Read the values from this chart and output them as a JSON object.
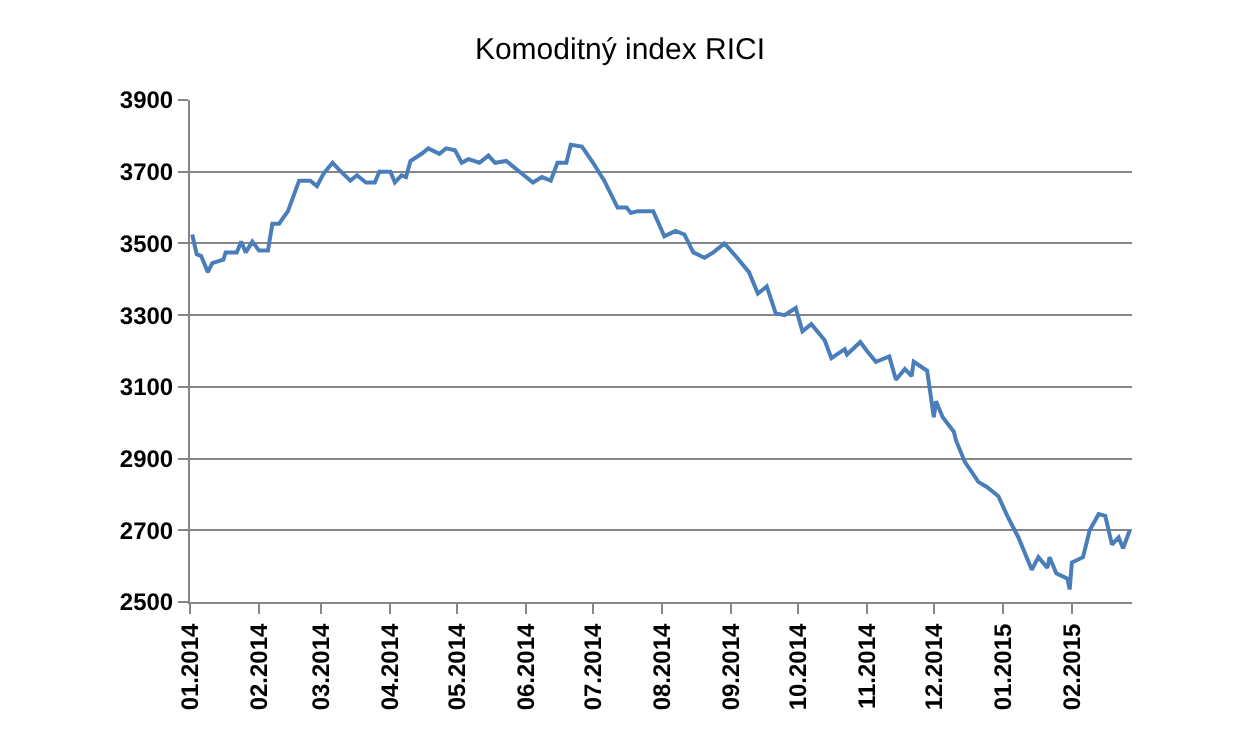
{
  "chart_data": {
    "type": "line",
    "title": "Komoditný index RICI",
    "x": [
      "2014-01-02",
      "2014-01-04",
      "2014-01-06",
      "2014-01-09",
      "2014-01-11",
      "2014-01-16",
      "2014-01-17",
      "2014-01-22",
      "2014-01-24",
      "2014-01-26",
      "2014-01-29",
      "2014-02-01",
      "2014-02-05",
      "2014-02-07",
      "2014-02-10",
      "2014-02-14",
      "2014-02-19",
      "2014-02-24",
      "2014-02-27",
      "2014-03-02",
      "2014-03-06",
      "2014-03-09",
      "2014-03-14",
      "2014-03-17",
      "2014-03-21",
      "2014-03-25",
      "2014-03-27",
      "2014-04-01",
      "2014-04-03",
      "2014-04-06",
      "2014-04-08",
      "2014-04-10",
      "2014-04-15",
      "2014-04-18",
      "2014-04-23",
      "2014-04-26",
      "2014-04-30",
      "2014-05-03",
      "2014-05-06",
      "2014-05-11",
      "2014-05-15",
      "2014-05-18",
      "2014-05-23",
      "2014-05-29",
      "2014-06-04",
      "2014-06-08",
      "2014-06-12",
      "2014-06-15",
      "2014-06-19",
      "2014-06-21",
      "2014-06-26",
      "2014-07-01",
      "2014-07-06",
      "2014-07-12",
      "2014-07-16",
      "2014-07-18",
      "2014-07-21",
      "2014-07-28",
      "2014-08-02",
      "2014-08-07",
      "2014-08-11",
      "2014-08-15",
      "2014-08-20",
      "2014-08-24",
      "2014-08-29",
      "2014-09-03",
      "2014-09-09",
      "2014-09-13",
      "2014-09-17",
      "2014-09-21",
      "2014-09-25",
      "2014-09-30",
      "2014-10-03",
      "2014-10-07",
      "2014-10-13",
      "2014-10-16",
      "2014-10-22",
      "2014-10-23",
      "2014-10-29",
      "2014-11-01",
      "2014-11-05",
      "2014-11-11",
      "2014-11-14",
      "2014-11-18",
      "2014-11-21",
      "2014-11-22",
      "2014-11-28",
      "2014-12-01",
      "2014-12-02",
      "2014-12-05",
      "2014-12-10",
      "2014-12-11",
      "2014-12-15",
      "2014-12-21",
      "2014-12-25",
      "2014-12-30",
      "2015-01-03",
      "2015-01-08",
      "2015-01-14",
      "2015-01-17",
      "2015-01-21",
      "2015-01-22",
      "2015-01-25",
      "2015-01-30",
      "2015-01-31",
      "2015-02-01",
      "2015-02-06",
      "2015-02-09",
      "2015-02-13",
      "2015-02-16",
      "2015-02-19",
      "2015-02-22",
      "2015-02-24",
      "2015-02-27"
    ],
    "series": [
      {
        "color": "#4a7ebb",
        "values": [
          3525,
          3470,
          3465,
          3420,
          3445,
          3455,
          3475,
          3475,
          3505,
          3475,
          3505,
          3480,
          3480,
          3555,
          3555,
          3590,
          3675,
          3675,
          3660,
          3695,
          3725,
          3705,
          3675,
          3690,
          3670,
          3670,
          3700,
          3700,
          3670,
          3690,
          3685,
          3730,
          3750,
          3765,
          3750,
          3765,
          3760,
          3725,
          3735,
          3725,
          3745,
          3725,
          3730,
          3700,
          3670,
          3685,
          3675,
          3725,
          3725,
          3775,
          3770,
          3725,
          3675,
          3600,
          3600,
          3585,
          3590,
          3590,
          3520,
          3535,
          3525,
          3475,
          3460,
          3475,
          3500,
          3465,
          3420,
          3360,
          3380,
          3305,
          3300,
          3320,
          3255,
          3275,
          3230,
          3180,
          3205,
          3190,
          3225,
          3200,
          3170,
          3185,
          3120,
          3150,
          3130,
          3170,
          3145,
          3015,
          3060,
          3015,
          2975,
          2950,
          2890,
          2835,
          2820,
          2795,
          2740,
          2680,
          2590,
          2625,
          2595,
          2625,
          2580,
          2565,
          2535,
          2610,
          2625,
          2700,
          2745,
          2740,
          2660,
          2680,
          2650,
          2700
        ]
      }
    ],
    "xlim": [
      "2014-01-01",
      "2015-02-28"
    ],
    "xticks": [
      {
        "value": "2014-01-01",
        "label": "01.2014"
      },
      {
        "value": "2014-02-01",
        "label": "02.2014"
      },
      {
        "value": "2014-03-01",
        "label": "03.2014"
      },
      {
        "value": "2014-04-01",
        "label": "04.2014"
      },
      {
        "value": "2014-05-01",
        "label": "05.2014"
      },
      {
        "value": "2014-06-01",
        "label": "06.2014"
      },
      {
        "value": "2014-07-01",
        "label": "07.2014"
      },
      {
        "value": "2014-08-01",
        "label": "08.2014"
      },
      {
        "value": "2014-09-01",
        "label": "09.2014"
      },
      {
        "value": "2014-10-01",
        "label": "10.2014"
      },
      {
        "value": "2014-11-01",
        "label": "11.2014"
      },
      {
        "value": "2014-12-01",
        "label": "12.2014"
      },
      {
        "value": "2015-01-01",
        "label": "01.2015"
      },
      {
        "value": "2015-02-01",
        "label": "02.2015"
      }
    ],
    "ylim": [
      2500,
      3900
    ],
    "yticks": [
      2500,
      2700,
      2900,
      3100,
      3300,
      3500,
      3700,
      3900
    ],
    "grid": "y",
    "marker": "none",
    "line_style": "solid"
  }
}
